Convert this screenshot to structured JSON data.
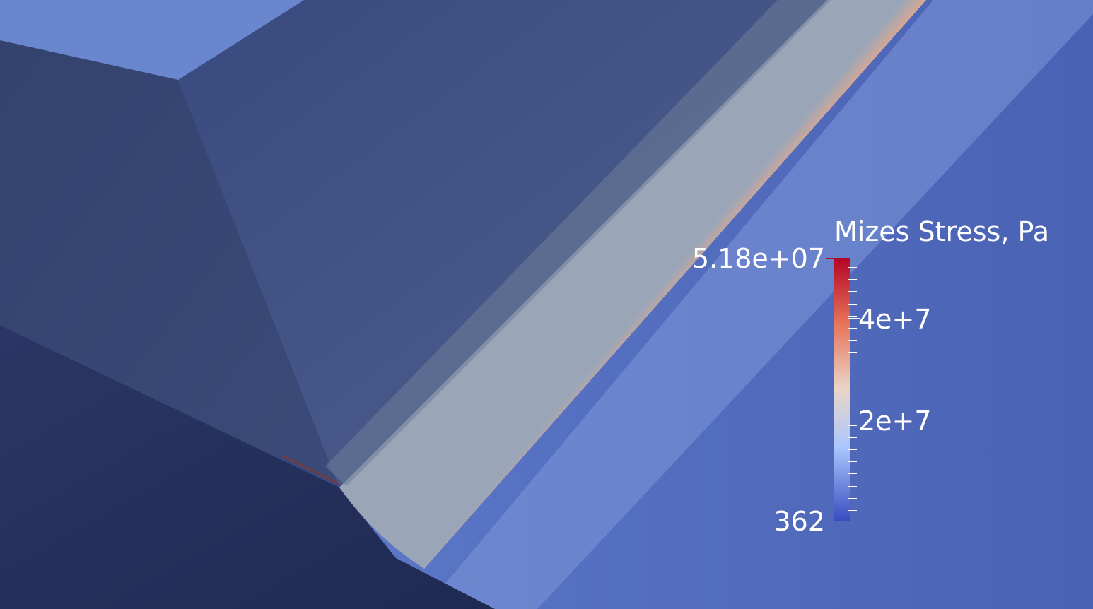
{
  "legend": {
    "title": "Mizes Stress, Pa",
    "max_label": "5.18e+07",
    "min_label": "362",
    "tick_labels": [
      "4e+7",
      "2e+7"
    ],
    "range": {
      "min": 362,
      "max": 51800000
    },
    "colormap": {
      "low": "#3b4cc0",
      "mid": "#dddddd",
      "high": "#b40426"
    }
  },
  "colors": {
    "background_face": "#4a63b5",
    "shadow_face": "#25305a",
    "upper_face": "#3c4d85",
    "top_face": "#6b87cf",
    "stress_band_core": "#e06a4b",
    "stress_band_edge": "#f0c8a8"
  }
}
